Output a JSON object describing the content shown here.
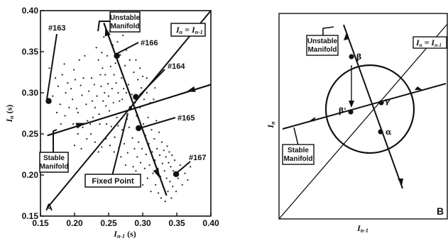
{
  "chart_data": [
    {
      "type": "scatter",
      "panel_label": "A",
      "xlabel": "I",
      "xlabel_sub": "n-1",
      "xlabel_unit": " (s)",
      "ylabel": "I",
      "ylabel_sub": "n",
      "ylabel_unit": " (s)",
      "xlim": [
        0.15,
        0.4
      ],
      "ylim": [
        0.15,
        0.4
      ],
      "xticks": [
        {
          "value": 0.15,
          "label": "0.15"
        },
        {
          "value": 0.2,
          "label": "0.20"
        },
        {
          "value": 0.25,
          "label": "0.25"
        },
        {
          "value": 0.3,
          "label": "0.30"
        },
        {
          "value": 0.35,
          "label": "0.35"
        },
        {
          "value": 0.4,
          "label": "0.40"
        }
      ],
      "yticks": [
        {
          "value": 0.15,
          "label": "0.15"
        },
        {
          "value": 0.2,
          "label": "0.20"
        },
        {
          "value": 0.25,
          "label": "0.25"
        },
        {
          "value": 0.3,
          "label": "0.30"
        },
        {
          "value": 0.35,
          "label": "0.35"
        },
        {
          "value": 0.4,
          "label": "0.40"
        }
      ],
      "fixed_point": {
        "x": 0.282,
        "y": 0.282
      },
      "stable_manifold": {
        "from": [
          0.16,
          0.248
        ],
        "to": [
          0.4,
          0.31
        ]
      },
      "unstable_manifold": {
        "from": [
          0.243,
          0.385
        ],
        "to": [
          0.335,
          0.175
        ]
      },
      "identity_line": {
        "from": [
          0.16,
          0.16
        ],
        "to": [
          0.4,
          0.4
        ]
      },
      "highlighted_points": [
        {
          "id": "#163",
          "x": 0.162,
          "y": 0.29
        },
        {
          "id": "#166",
          "x": 0.262,
          "y": 0.345
        },
        {
          "id": "#164",
          "x": 0.29,
          "y": 0.295
        },
        {
          "id": "#165",
          "x": 0.294,
          "y": 0.257
        },
        {
          "id": "#167",
          "x": 0.349,
          "y": 0.201
        }
      ],
      "annotations": {
        "unstable_manifold": [
          "Unstable",
          "Manifold"
        ],
        "stable_manifold": [
          "Stable",
          "Manifold"
        ],
        "fixed_point": "Fixed Point",
        "identity_main": "I",
        "identity_sub_n": "n",
        "identity_eq": " = I",
        "identity_sub_n1": "n-1",
        "point_163": "#163",
        "point_166": "#166",
        "point_164": "#164",
        "point_165": "#165",
        "point_167": "#167"
      },
      "scatter_points": [
        [
          0.163,
          0.33
        ],
        [
          0.168,
          0.296
        ],
        [
          0.172,
          0.318
        ],
        [
          0.176,
          0.308
        ],
        [
          0.179,
          0.286
        ],
        [
          0.182,
          0.322
        ],
        [
          0.185,
          0.335
        ],
        [
          0.187,
          0.3
        ],
        [
          0.19,
          0.312
        ],
        [
          0.192,
          0.282
        ],
        [
          0.195,
          0.305
        ],
        [
          0.197,
          0.292
        ],
        [
          0.199,
          0.328
        ],
        [
          0.201,
          0.316
        ],
        [
          0.203,
          0.281
        ],
        [
          0.205,
          0.276
        ],
        [
          0.207,
          0.34
        ],
        [
          0.209,
          0.309
        ],
        [
          0.211,
          0.297
        ],
        [
          0.213,
          0.318
        ],
        [
          0.215,
          0.345
        ],
        [
          0.217,
          0.286
        ],
        [
          0.219,
          0.266
        ],
        [
          0.221,
          0.302
        ],
        [
          0.223,
          0.262
        ],
        [
          0.225,
          0.318
        ],
        [
          0.226,
          0.29
        ],
        [
          0.227,
          0.27
        ],
        [
          0.229,
          0.31
        ],
        [
          0.23,
          0.282
        ],
        [
          0.232,
          0.355
        ],
        [
          0.233,
          0.296
        ],
        [
          0.235,
          0.34
        ],
        [
          0.236,
          0.274
        ],
        [
          0.237,
          0.262
        ],
        [
          0.238,
          0.322
        ],
        [
          0.239,
          0.308
        ],
        [
          0.24,
          0.349
        ],
        [
          0.241,
          0.33
        ],
        [
          0.242,
          0.29
        ],
        [
          0.243,
          0.368
        ],
        [
          0.244,
          0.3
        ],
        [
          0.245,
          0.322
        ],
        [
          0.246,
          0.284
        ],
        [
          0.247,
          0.262
        ],
        [
          0.248,
          0.345
        ],
        [
          0.249,
          0.311
        ],
        [
          0.25,
          0.296
        ],
        [
          0.251,
          0.278
        ],
        [
          0.252,
          0.375
        ],
        [
          0.253,
          0.332
        ],
        [
          0.254,
          0.259
        ],
        [
          0.255,
          0.305
        ],
        [
          0.256,
          0.358
        ],
        [
          0.257,
          0.288
        ],
        [
          0.258,
          0.322
        ],
        [
          0.259,
          0.246
        ],
        [
          0.26,
          0.336
        ],
        [
          0.261,
          0.312
        ],
        [
          0.262,
          0.27
        ],
        [
          0.263,
          0.362
        ],
        [
          0.264,
          0.3
        ],
        [
          0.265,
          0.233
        ],
        [
          0.266,
          0.29
        ],
        [
          0.267,
          0.346
        ],
        [
          0.268,
          0.222
        ],
        [
          0.269,
          0.318
        ],
        [
          0.27,
          0.255
        ],
        [
          0.271,
          0.37
        ],
        [
          0.272,
          0.305
        ],
        [
          0.273,
          0.238
        ],
        [
          0.274,
          0.333
        ],
        [
          0.275,
          0.212
        ],
        [
          0.276,
          0.352
        ],
        [
          0.277,
          0.268
        ],
        [
          0.278,
          0.227
        ],
        [
          0.279,
          0.31
        ],
        [
          0.28,
          0.258
        ],
        [
          0.281,
          0.34
        ],
        [
          0.283,
          0.198
        ],
        [
          0.284,
          0.298
        ],
        [
          0.285,
          0.245
        ],
        [
          0.286,
          0.21
        ],
        [
          0.287,
          0.325
        ],
        [
          0.288,
          0.232
        ],
        [
          0.289,
          0.288
        ],
        [
          0.29,
          0.205
        ],
        [
          0.291,
          0.272
        ],
        [
          0.292,
          0.222
        ],
        [
          0.293,
          0.316
        ],
        [
          0.294,
          0.24
        ],
        [
          0.295,
          0.195
        ],
        [
          0.296,
          0.282
        ],
        [
          0.297,
          0.215
        ],
        [
          0.298,
          0.306
        ],
        [
          0.299,
          0.232
        ],
        [
          0.3,
          0.188
        ],
        [
          0.301,
          0.262
        ],
        [
          0.302,
          0.292
        ],
        [
          0.303,
          0.208
        ],
        [
          0.304,
          0.248
        ],
        [
          0.305,
          0.225
        ],
        [
          0.306,
          0.3
        ],
        [
          0.307,
          0.196
        ],
        [
          0.308,
          0.27
        ],
        [
          0.309,
          0.238
        ],
        [
          0.31,
          0.212
        ],
        [
          0.311,
          0.288
        ],
        [
          0.312,
          0.18
        ],
        [
          0.313,
          0.255
        ],
        [
          0.314,
          0.228
        ],
        [
          0.315,
          0.202
        ],
        [
          0.316,
          0.292
        ],
        [
          0.317,
          0.244
        ],
        [
          0.318,
          0.218
        ],
        [
          0.319,
          0.188
        ],
        [
          0.32,
          0.266
        ],
        [
          0.321,
          0.232
        ],
        [
          0.322,
          0.208
        ],
        [
          0.323,
          0.178
        ],
        [
          0.324,
          0.252
        ],
        [
          0.325,
          0.224
        ],
        [
          0.326,
          0.198
        ],
        [
          0.327,
          0.172
        ],
        [
          0.328,
          0.24
        ],
        [
          0.329,
          0.214
        ],
        [
          0.33,
          0.186
        ],
        [
          0.331,
          0.23
        ],
        [
          0.332,
          0.205
        ],
        [
          0.333,
          0.168
        ],
        [
          0.334,
          0.222
        ],
        [
          0.335,
          0.196
        ],
        [
          0.336,
          0.235
        ],
        [
          0.337,
          0.18
        ],
        [
          0.338,
          0.215
        ],
        [
          0.339,
          0.228
        ],
        [
          0.34,
          0.192
        ],
        [
          0.341,
          0.21
        ],
        [
          0.342,
          0.172
        ],
        [
          0.343,
          0.224
        ],
        [
          0.344,
          0.186
        ],
        [
          0.345,
          0.205
        ],
        [
          0.347,
          0.218
        ],
        [
          0.349,
          0.18
        ],
        [
          0.352,
          0.196
        ],
        [
          0.355,
          0.212
        ],
        [
          0.358,
          0.188
        ],
        [
          0.362,
          0.202
        ],
        [
          0.366,
          0.194
        ],
        [
          0.37,
          0.21
        ],
        [
          0.23,
          0.24
        ],
        [
          0.235,
          0.228
        ],
        [
          0.224,
          0.25
        ],
        [
          0.218,
          0.244
        ],
        [
          0.212,
          0.258
        ],
        [
          0.205,
          0.25
        ],
        [
          0.198,
          0.262
        ],
        [
          0.24,
          0.234
        ],
        [
          0.246,
          0.244
        ],
        [
          0.252,
          0.236
        ],
        [
          0.258,
          0.228
        ],
        [
          0.264,
          0.26
        ],
        [
          0.27,
          0.292
        ],
        [
          0.276,
          0.3
        ],
        [
          0.3,
          0.32
        ],
        [
          0.306,
          0.318
        ],
        [
          0.312,
          0.312
        ],
        [
          0.318,
          0.306
        ],
        [
          0.296,
          0.33
        ],
        [
          0.29,
          0.34
        ],
        [
          0.186,
          0.272
        ],
        [
          0.18,
          0.262
        ],
        [
          0.174,
          0.276
        ],
        [
          0.2,
          0.236
        ],
        [
          0.21,
          0.232
        ]
      ]
    },
    {
      "type": "diagram",
      "panel_label": "B",
      "xlabel": "I",
      "xlabel_sub": "n-1",
      "ylabel": "I",
      "ylabel_sub": "n",
      "annotations": {
        "unstable_manifold": [
          "Unstable",
          "Manifold"
        ],
        "stable_manifold": [
          "Stable",
          "Manifold"
        ],
        "identity_main": "I",
        "identity_sub_n": "n",
        "identity_eq": " = I",
        "identity_sub_n1": "n-1",
        "beta": "β",
        "beta_prime": "β'",
        "gamma": "γ",
        "alpha": "α"
      }
    }
  ]
}
